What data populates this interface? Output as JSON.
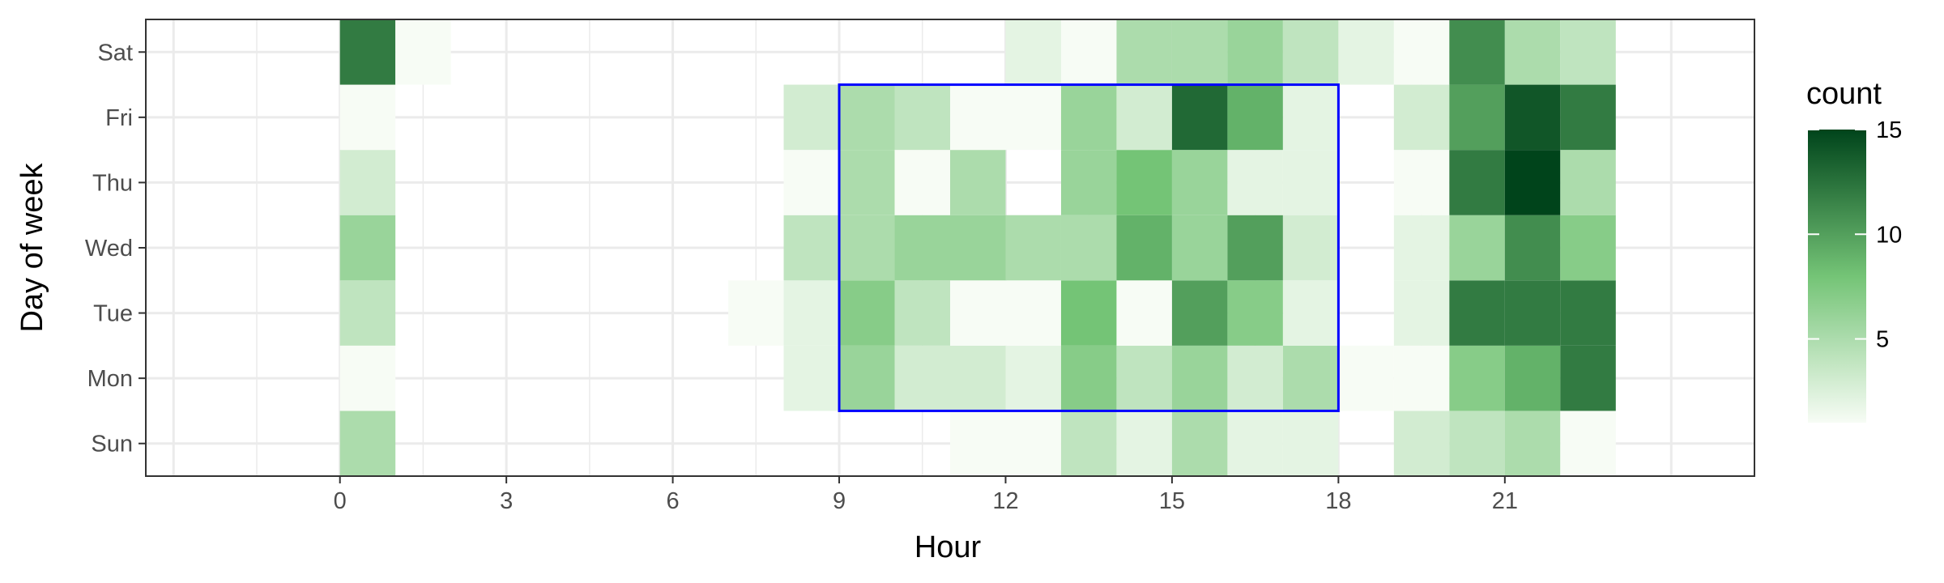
{
  "chart_data": {
    "type": "heatmap",
    "title": "",
    "xlabel": "Hour",
    "ylabel": "Day of week",
    "x_ticks": [
      0,
      3,
      6,
      9,
      12,
      15,
      18,
      21
    ],
    "xlim": [
      -3.5,
      25.5
    ],
    "y_categories": [
      "Sun",
      "Mon",
      "Tue",
      "Wed",
      "Thu",
      "Fri",
      "Sat"
    ],
    "x_hours": [
      0,
      1,
      2,
      3,
      4,
      5,
      6,
      7,
      8,
      9,
      10,
      11,
      12,
      13,
      14,
      15,
      16,
      17,
      18,
      19,
      20,
      21,
      22
    ],
    "values": {
      "Sat": [
        12,
        1,
        0,
        0,
        0,
        0,
        0,
        0,
        0,
        0,
        0,
        0,
        2,
        1,
        5,
        5,
        6,
        4,
        2,
        1,
        11,
        5,
        4
      ],
      "Fri": [
        1,
        0,
        0,
        0,
        0,
        0,
        0,
        0,
        3,
        5,
        4,
        1,
        1,
        6,
        3,
        13,
        9,
        2,
        0,
        3,
        10,
        14,
        12
      ],
      "Thu": [
        3,
        0,
        0,
        0,
        0,
        0,
        0,
        0,
        1,
        5,
        1,
        5,
        0,
        6,
        8,
        6,
        2,
        2,
        0,
        1,
        12,
        15,
        5
      ],
      "Wed": [
        6,
        0,
        0,
        0,
        0,
        0,
        0,
        0,
        4,
        5,
        6,
        6,
        5,
        5,
        9,
        6,
        10,
        3,
        0,
        2,
        6,
        11,
        7
      ],
      "Tue": [
        4,
        0,
        0,
        0,
        0,
        0,
        0,
        1,
        2,
        7,
        4,
        1,
        1,
        8,
        1,
        10,
        7,
        2,
        0,
        2,
        12,
        12,
        12
      ],
      "Mon": [
        1,
        0,
        0,
        0,
        0,
        0,
        0,
        0,
        2,
        6,
        3,
        3,
        2,
        7,
        4,
        6,
        3,
        5,
        1,
        1,
        7,
        9,
        12
      ],
      "Sun": [
        5,
        0,
        0,
        0,
        0,
        0,
        0,
        0,
        0,
        0,
        0,
        1,
        1,
        4,
        2,
        5,
        2,
        2,
        0,
        3,
        4,
        5,
        1
      ]
    },
    "fill_range": [
      1,
      15
    ],
    "colors": {
      "low": "#f7fcf5",
      "mid": "#74c476",
      "high": "#00441b"
    },
    "grid": true,
    "legend": {
      "title": "count",
      "ticks": [
        5,
        10,
        15
      ],
      "placement": "right"
    },
    "annotation": {
      "type": "rectangle",
      "x": [
        9,
        18
      ],
      "y": [
        "Mon",
        "Fri"
      ],
      "color": "#0000ff"
    }
  }
}
